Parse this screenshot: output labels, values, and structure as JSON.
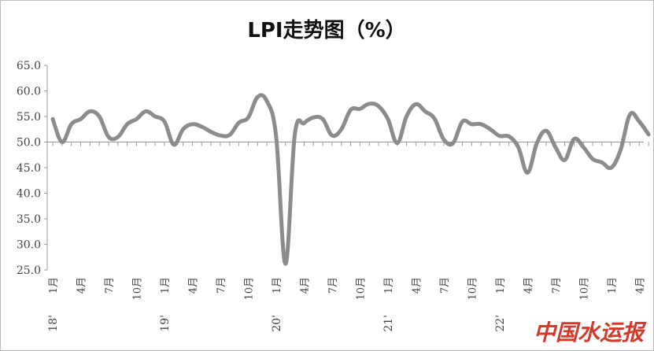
{
  "chart_data": {
    "type": "line",
    "title": "LPI走势图（%）",
    "ylim": [
      25,
      65
    ],
    "yticks": [
      "65.0",
      "60.0",
      "55.0",
      "50.0",
      "45.0",
      "40.0",
      "35.0",
      "30.0",
      "25.0"
    ],
    "baseline": 50,
    "grid": false,
    "x_month_labels": [
      {
        "i": 0,
        "label": "1月"
      },
      {
        "i": 3,
        "label": "4月"
      },
      {
        "i": 6,
        "label": "7月"
      },
      {
        "i": 9,
        "label": "10月"
      },
      {
        "i": 12,
        "label": "1月"
      },
      {
        "i": 15,
        "label": "4月"
      },
      {
        "i": 18,
        "label": "7月"
      },
      {
        "i": 21,
        "label": "10月"
      },
      {
        "i": 24,
        "label": "1月"
      },
      {
        "i": 27,
        "label": "4月"
      },
      {
        "i": 30,
        "label": "7月"
      },
      {
        "i": 33,
        "label": "10月"
      },
      {
        "i": 36,
        "label": "1月"
      },
      {
        "i": 39,
        "label": "4月"
      },
      {
        "i": 42,
        "label": "7月"
      },
      {
        "i": 45,
        "label": "10月"
      },
      {
        "i": 48,
        "label": "1月"
      },
      {
        "i": 51,
        "label": "4月"
      },
      {
        "i": 54,
        "label": "7月"
      },
      {
        "i": 57,
        "label": "10月"
      },
      {
        "i": 60,
        "label": "1月"
      },
      {
        "i": 63,
        "label": "4月"
      }
    ],
    "x_year_labels": [
      {
        "i": 0,
        "label": "18'"
      },
      {
        "i": 12,
        "label": "19'"
      },
      {
        "i": 24,
        "label": "20'"
      },
      {
        "i": 36,
        "label": "21'"
      },
      {
        "i": 48,
        "label": "22'"
      }
    ],
    "series": [
      {
        "color": "#8c8c8c",
        "values": [
          54.5,
          50.0,
          53.5,
          54.5,
          56.0,
          55.0,
          51.0,
          51.0,
          53.5,
          54.5,
          56.0,
          55.0,
          54.0,
          49.5,
          52.5,
          53.5,
          53.0,
          52.0,
          51.3,
          51.4,
          53.8,
          54.8,
          58.8,
          58.0,
          51.0,
          26.2,
          51.5,
          53.7,
          54.8,
          54.5,
          51.3,
          52.5,
          56.3,
          56.5,
          57.5,
          57.0,
          54.5,
          49.8,
          55.0,
          57.4,
          56.0,
          54.6,
          50.5,
          49.8,
          54.0,
          53.5,
          53.5,
          52.5,
          51.2,
          51.1,
          49.0,
          44.0,
          49.8,
          52.2,
          49.0,
          46.5,
          50.6,
          49.0,
          46.7,
          46.0,
          45.0,
          48.5,
          55.4,
          54.0,
          51.5
        ]
      }
    ]
  },
  "watermark": "中国水运报"
}
